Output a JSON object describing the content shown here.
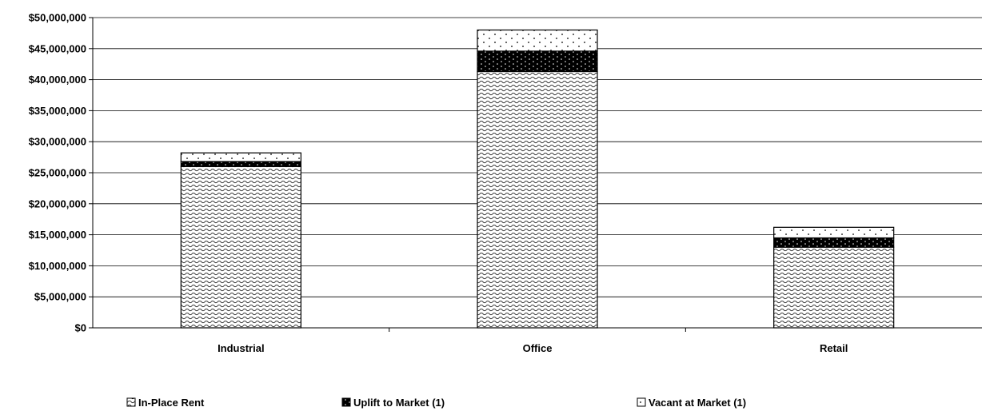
{
  "chart_data": {
    "type": "bar",
    "stacked": true,
    "categories": [
      "Industrial",
      "Office",
      "Retail"
    ],
    "series": [
      {
        "name": "In-Place Rent",
        "values": [
          26000000,
          41300000,
          13000000
        ]
      },
      {
        "name": "Uplift to Market (1)",
        "values": [
          800000,
          3300000,
          1500000
        ]
      },
      {
        "name": "Vacant at Market (1)",
        "values": [
          1400000,
          3400000,
          1700000
        ]
      }
    ],
    "y_ticks": [
      "$0",
      "$5,000,000",
      "$10,000,000",
      "$15,000,000",
      "$20,000,000",
      "$25,000,000",
      "$30,000,000",
      "$35,000,000",
      "$40,000,000",
      "$45,000,000",
      "$50,000,000"
    ],
    "ylim": [
      0,
      50000000
    ],
    "grid": true,
    "legend_position": "bottom",
    "colors": {
      "uplift": "#000000",
      "vacant": "#ffffff",
      "in_place": "#ffffff",
      "pattern_ink": "#000000"
    }
  }
}
